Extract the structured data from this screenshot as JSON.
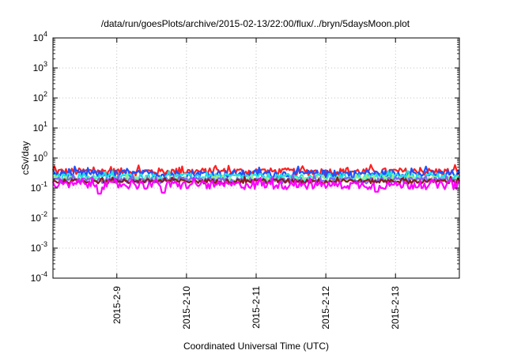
{
  "chart_data": {
    "type": "line",
    "title": "/data/run/goesPlots/archive/2015-02-13/22:00/flux/../bryn/5daysMoon.plot",
    "xlabel": "Coordinated Universal Time (UTC)",
    "ylabel": "cSv/day",
    "yscale": "log",
    "ylim": [
      0.0001,
      10000
    ],
    "xlim": [
      "2015-02-08 02:00",
      "2015-02-13 22:00"
    ],
    "grid": true,
    "y_ticks": [
      {
        "exp": "-4",
        "value": 0.0001
      },
      {
        "exp": "-3",
        "value": 0.001
      },
      {
        "exp": "-2",
        "value": 0.01
      },
      {
        "exp": "-1",
        "value": 0.1
      },
      {
        "exp": "0",
        "value": 1
      },
      {
        "exp": "1",
        "value": 10
      },
      {
        "exp": "2",
        "value": 100
      },
      {
        "exp": "3",
        "value": 1000
      },
      {
        "exp": "4",
        "value": 10000
      }
    ],
    "y_tick_base": "10",
    "x_ticks": [
      {
        "label": "2015-2-9",
        "value": "2015-02-09 00:00"
      },
      {
        "label": "2015-2-10",
        "value": "2015-02-10 00:00"
      },
      {
        "label": "2015-2-11",
        "value": "2015-02-11 00:00"
      },
      {
        "label": "2015-2-12",
        "value": "2015-02-12 00:00"
      },
      {
        "label": "2015-2-13",
        "value": "2015-02-13 00:00"
      }
    ],
    "series": [
      {
        "color": "#ff2020",
        "level": 0.36,
        "spread": 0.1,
        "dips": []
      },
      {
        "color": "#2050ff",
        "level": 0.3,
        "spread": 0.09,
        "dips": []
      },
      {
        "color": "#20e0e0",
        "level": 0.24,
        "spread": 0.06,
        "dips": []
      },
      {
        "color": "#90ee90",
        "level": 0.2,
        "spread": 0.04,
        "dips": []
      },
      {
        "color": "#7b68ee",
        "level": 0.18,
        "spread": 0.04,
        "dips": []
      },
      {
        "color": "#8b1a1a",
        "level": 0.17,
        "spread": 0.03,
        "dips": []
      },
      {
        "color": "#ff00ff",
        "level": 0.13,
        "spread": 0.04,
        "dips": [
          {
            "at": "2015-02-08 18:00",
            "value": 0.065
          },
          {
            "at": "2015-02-09 16:00",
            "value": 0.07
          },
          {
            "at": "2015-02-12 17:30",
            "value": 0.075
          }
        ]
      }
    ]
  }
}
